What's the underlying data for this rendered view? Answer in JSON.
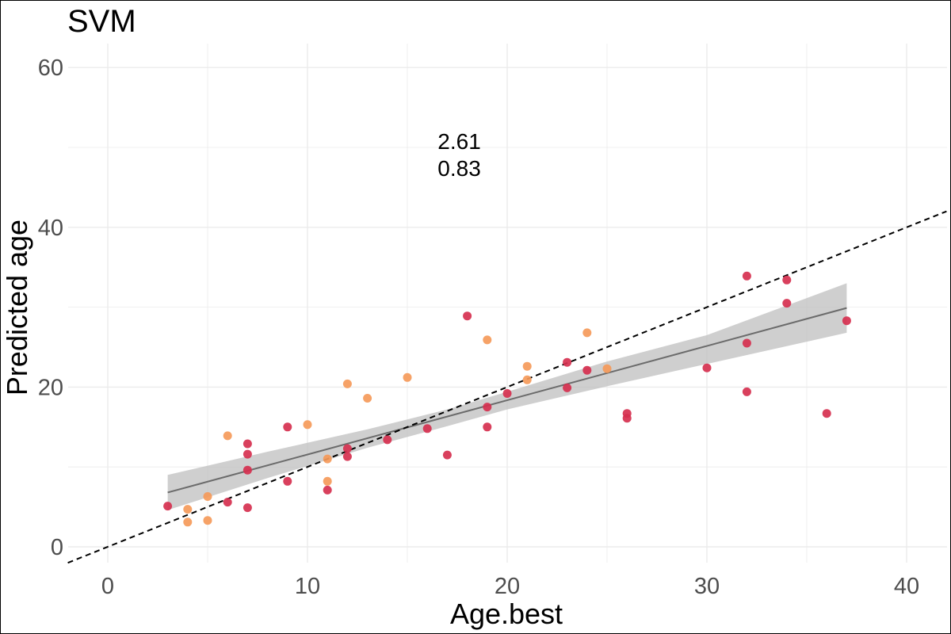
{
  "chart_data": {
    "type": "scatter",
    "title": "SVM",
    "xlabel": "Age.best",
    "ylabel": "Predicted age",
    "xlim": [
      -2,
      42
    ],
    "ylim": [
      -2,
      63
    ],
    "x_ticks": [
      0,
      10,
      20,
      30,
      40
    ],
    "y_ticks": [
      0,
      20,
      40,
      60
    ],
    "x_tick_labels": [
      "0",
      "10",
      "20",
      "30",
      "40"
    ],
    "y_tick_labels": [
      "0",
      "20",
      "40",
      "60"
    ],
    "grid": true,
    "legend": "none",
    "annotations": [
      "2.61",
      "0.83"
    ],
    "annotation_position": {
      "x": 17.6,
      "y": 50
    },
    "colors": {
      "series_a": "#d6304f",
      "series_b": "#f59a5a",
      "fit_line": "#6b6b6b",
      "confidence_band": "#bdbdbd",
      "identity_line": "#000000",
      "grid": "#ebebeb"
    },
    "series": [
      {
        "color": "#d6304f",
        "points": [
          [
            3,
            5.1
          ],
          [
            6,
            5.6
          ],
          [
            7,
            4.9
          ],
          [
            7,
            11.6
          ],
          [
            7,
            12.9
          ],
          [
            7,
            9.6
          ],
          [
            9,
            8.2
          ],
          [
            9,
            15
          ],
          [
            11,
            7.1
          ],
          [
            12,
            11.3
          ],
          [
            12,
            12.3
          ],
          [
            14,
            13.4
          ],
          [
            16,
            14.8
          ],
          [
            17,
            11.5
          ],
          [
            18,
            28.9
          ],
          [
            19,
            15
          ],
          [
            19,
            17.5
          ],
          [
            20,
            19.2
          ],
          [
            23,
            19.9
          ],
          [
            23,
            23.1
          ],
          [
            24,
            22.1
          ],
          [
            26,
            16.1
          ],
          [
            26,
            16.7
          ],
          [
            30,
            22.4
          ],
          [
            32,
            33.9
          ],
          [
            32,
            25.5
          ],
          [
            32,
            19.4
          ],
          [
            34,
            33.4
          ],
          [
            34,
            30.5
          ],
          [
            36,
            16.7
          ],
          [
            37,
            28.3
          ]
        ]
      },
      {
        "color": "#f59a5a",
        "points": [
          [
            4,
            4.7
          ],
          [
            4,
            3.1
          ],
          [
            5,
            6.3
          ],
          [
            5,
            3.3
          ],
          [
            6,
            13.9
          ],
          [
            10,
            15.3
          ],
          [
            11,
            8.2
          ],
          [
            11,
            11
          ],
          [
            12,
            20.4
          ],
          [
            13,
            18.6
          ],
          [
            15,
            21.2
          ],
          [
            19,
            25.9
          ],
          [
            21,
            20.9
          ],
          [
            21,
            22.6
          ],
          [
            24,
            26.8
          ],
          [
            25,
            22.3
          ]
        ]
      }
    ],
    "fit_line": {
      "x": [
        3,
        37
      ],
      "y": [
        6.8,
        29.9
      ]
    },
    "confidence_band": {
      "x": [
        3,
        8,
        13,
        17,
        20,
        25,
        30,
        37
      ],
      "lower": [
        4.6,
        8.6,
        12.4,
        15.1,
        17.2,
        20.1,
        22.9,
        26.8
      ],
      "upper": [
        9.0,
        11.9,
        14.7,
        17.2,
        19.4,
        23.2,
        26.5,
        33.0
      ]
    },
    "identity_line": {
      "x": [
        -2,
        42
      ],
      "y": [
        -2,
        42
      ]
    }
  }
}
